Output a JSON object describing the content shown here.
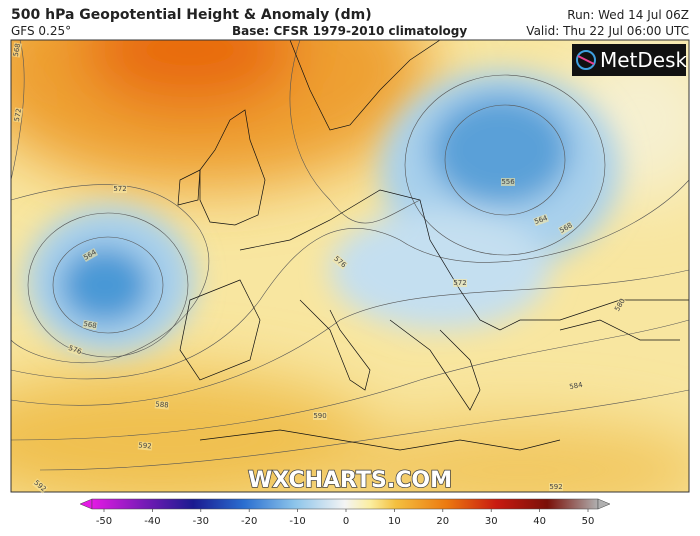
{
  "header": {
    "title": "500 hPa Geopotential Height & Anomaly (dm)",
    "model": "GFS 0.25°",
    "base": "Base: CFSR 1979-2010 climatology",
    "run": "Run: Wed 14 Jul 06Z",
    "valid": "Valid: Thu 22 Jul 06:00 UTC"
  },
  "logo": "MetDesk",
  "watermark": "WXCHARTS.COM",
  "contour_labels": [
    "568",
    "572",
    "572",
    "564",
    "568",
    "576",
    "588",
    "592",
    "592",
    "576",
    "572",
    "556",
    "564",
    "568",
    "580",
    "584",
    "590",
    "592"
  ],
  "colorbar": {
    "ticks": [
      -50,
      -40,
      -30,
      -20,
      -10,
      0,
      10,
      20,
      30,
      40,
      50
    ]
  }
}
